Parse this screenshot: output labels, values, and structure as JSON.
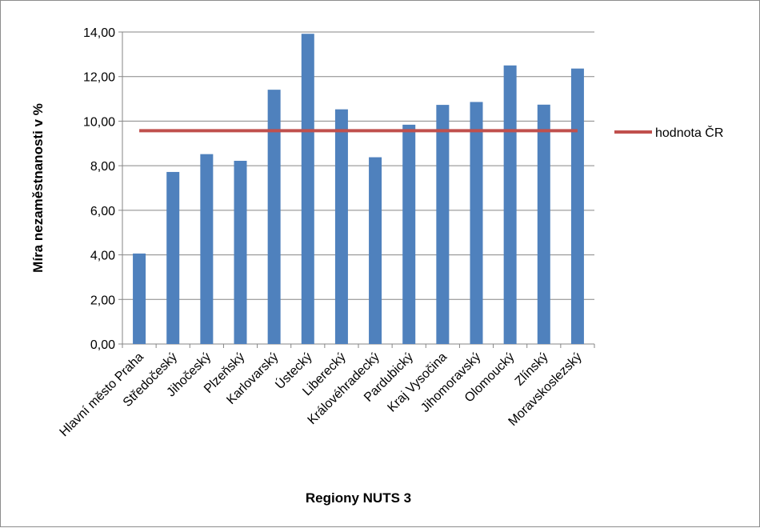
{
  "chart_data": {
    "type": "bar",
    "title": "",
    "xlabel": "Regiony NUTS 3",
    "ylabel": "Míra nezaměstnanosti v %",
    "ylim": [
      0,
      14
    ],
    "y_ticks": [
      "0,00",
      "2,00",
      "4,00",
      "6,00",
      "8,00",
      "10,00",
      "12,00",
      "14,00"
    ],
    "grid": true,
    "legend_position": "right",
    "categories": [
      "Hlavní město Praha",
      "Středočeský",
      "Jihočeský",
      "Plzeňský",
      "Karlovarský",
      "Ústecký",
      "Liberecký",
      "Královéhradecký",
      "Pardubický",
      "Kraj Vysočina",
      "Jihomoravský",
      "Olomoucký",
      "Zlínský",
      "Moravskoslezský"
    ],
    "series": [
      {
        "type": "bar",
        "color": "#4f81bd",
        "values": [
          4.06,
          7.72,
          8.52,
          8.22,
          11.41,
          13.92,
          10.53,
          8.38,
          9.84,
          10.73,
          10.86,
          12.5,
          10.74,
          12.36
        ]
      },
      {
        "name": "hodnota ČR",
        "type": "line",
        "color": "#c0504d",
        "value": 9.57
      }
    ]
  }
}
